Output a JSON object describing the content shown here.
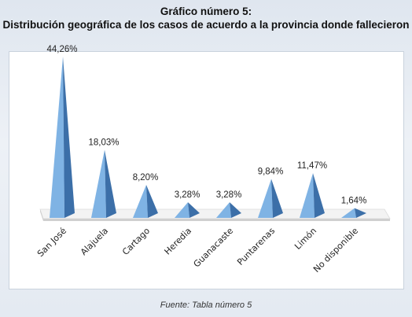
{
  "title": "Gráfico número 5:",
  "subtitle": "Distribución geográfica de los casos de acuerdo a la provincia donde fallecieron",
  "source": "Fuente: Tabla número 5",
  "colors": {
    "pyramid_light": "#7fb3e4",
    "pyramid_dark": "#3c6fa8",
    "floor_top": "#f3f3f3",
    "floor_side": "#cfcfcf"
  },
  "chart_data": {
    "type": "bar",
    "bar_shape": "3d-pyramid",
    "categories": [
      "San José",
      "Alajuela",
      "Cartago",
      "Heredia",
      "Guanacaste",
      "Puntarenas",
      "Limón",
      "No disponible"
    ],
    "values": [
      44.26,
      18.03,
      8.2,
      3.28,
      3.28,
      9.84,
      11.47,
      1.64
    ],
    "data_labels": [
      "44,26%",
      "18,03%",
      "8,20%",
      "3,28%",
      "3,28%",
      "9,84%",
      "11,47%",
      "1,64%"
    ],
    "ylim": [
      0,
      44.26
    ],
    "grid": false,
    "legend": "none"
  }
}
